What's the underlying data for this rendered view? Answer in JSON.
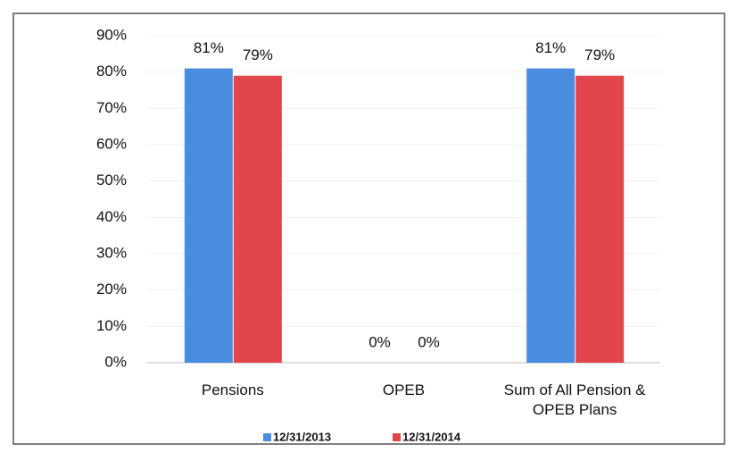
{
  "chart_data": {
    "type": "bar",
    "categories": [
      "Pensions",
      "OPEB",
      "Sum of All Pension & OPEB Plans"
    ],
    "series": [
      {
        "name": "12/31/2013",
        "color": "#4a8de0",
        "values": [
          81,
          0,
          81
        ],
        "value_labels": [
          "81%",
          "0%",
          "81%"
        ]
      },
      {
        "name": "12/31/2014",
        "color": "#e0464b",
        "values": [
          79,
          0,
          79
        ],
        "value_labels": [
          "79%",
          "0%",
          "79%"
        ]
      }
    ],
    "ylim": [
      0,
      90
    ],
    "yticks": [
      {
        "value": 0,
        "label": "0%"
      },
      {
        "value": 10,
        "label": "10%"
      },
      {
        "value": 20,
        "label": "20%"
      },
      {
        "value": 30,
        "label": "30%"
      },
      {
        "value": 40,
        "label": "40%"
      },
      {
        "value": 50,
        "label": "50%"
      },
      {
        "value": 60,
        "label": "60%"
      },
      {
        "value": 70,
        "label": "70%"
      },
      {
        "value": 80,
        "label": "80%"
      },
      {
        "value": 90,
        "label": "90%"
      }
    ],
    "grid": true,
    "legend": "bottom"
  }
}
